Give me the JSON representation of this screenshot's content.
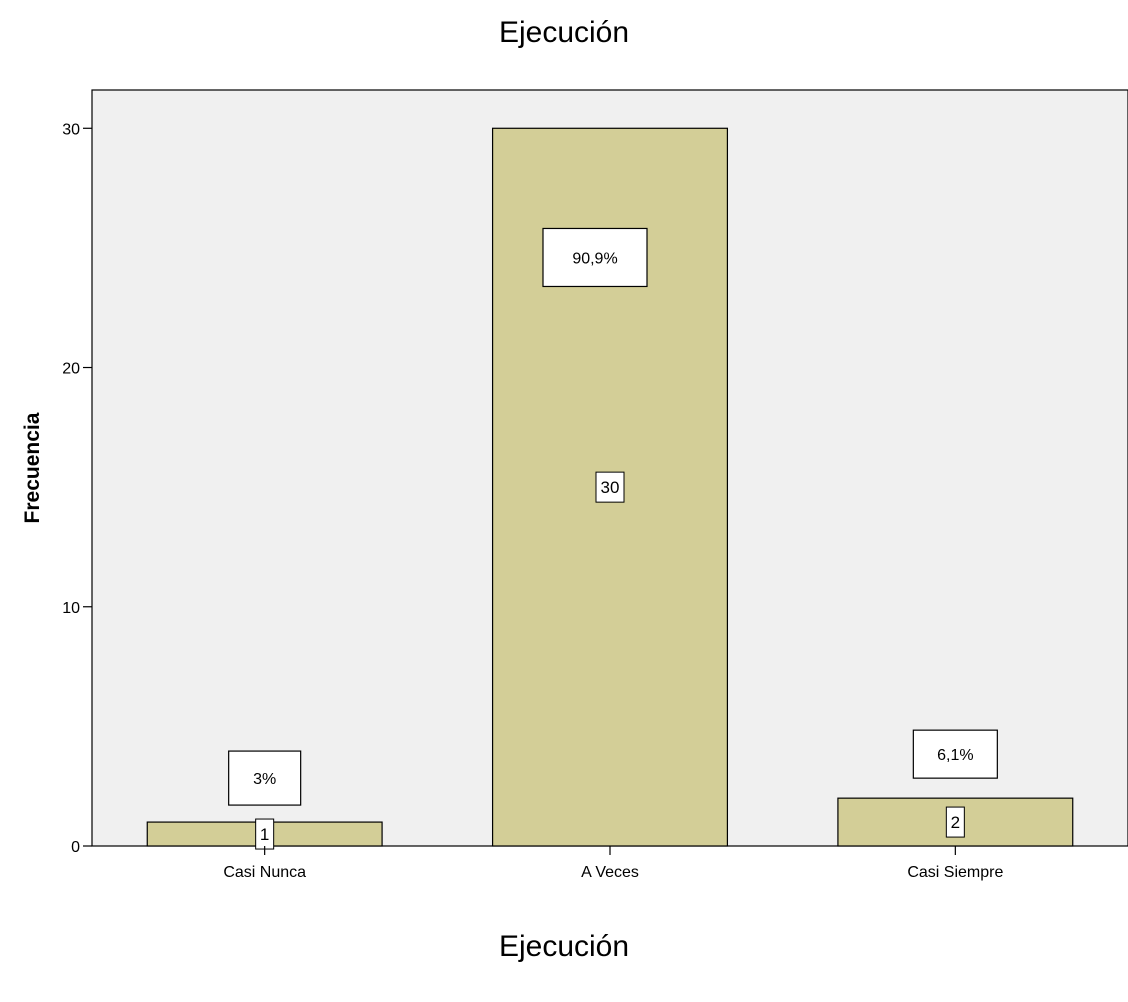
{
  "chart_data": {
    "type": "bar",
    "title": "Ejecución",
    "xlabel": "Ejecución",
    "ylabel": "Frecuencia",
    "categories": [
      "Casi Nunca",
      "A Veces",
      "Casi Siempre"
    ],
    "values": [
      1,
      30,
      2
    ],
    "count_labels": [
      "1",
      "30",
      "2"
    ],
    "percent_labels": [
      "3%",
      "90,9%",
      "6,1%"
    ],
    "yticks": [
      "0",
      "10",
      "20",
      "30"
    ],
    "ylim": [
      0,
      31.6
    ],
    "grid": false,
    "legend": "none",
    "colors": {
      "bar_fill": "#d3ce97",
      "bar_stroke": "#000000",
      "plot_background": "#f0f0f0"
    }
  }
}
